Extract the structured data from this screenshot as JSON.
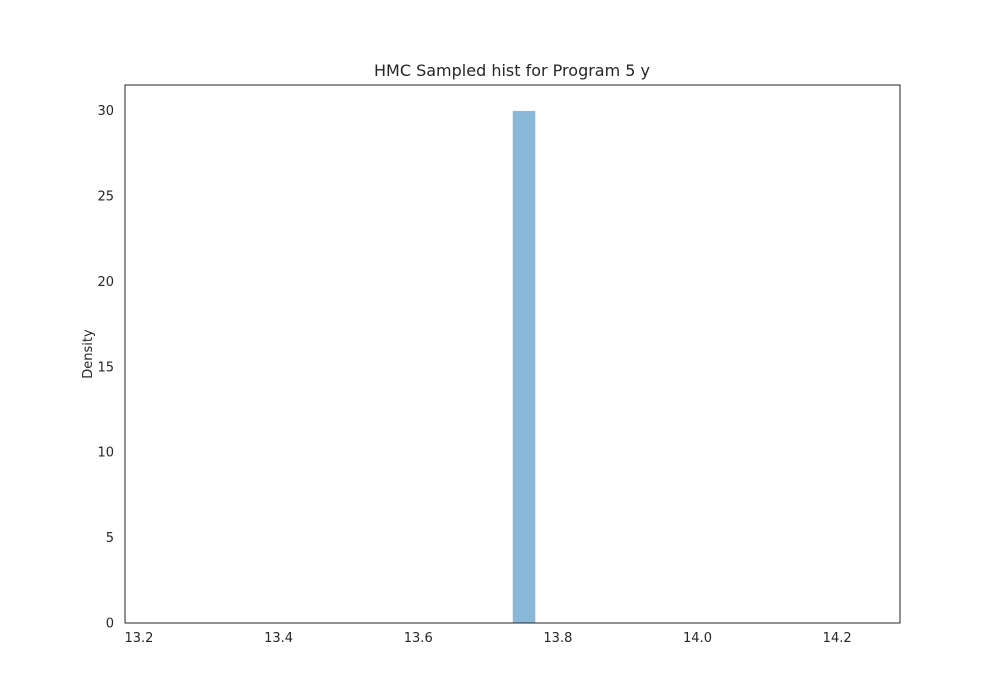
{
  "chart_data": {
    "type": "bar",
    "title": "HMC Sampled hist for Program 5 y",
    "xlabel": "",
    "ylabel": "Density",
    "xlim": [
      13.18,
      14.29
    ],
    "ylim": [
      0,
      31.5
    ],
    "x_ticks": [
      {
        "value": 13.2,
        "label": "13.2"
      },
      {
        "value": 13.4,
        "label": "13.4"
      },
      {
        "value": 13.6,
        "label": "13.6"
      },
      {
        "value": 13.8,
        "label": "13.8"
      },
      {
        "value": 14.0,
        "label": "14.0"
      },
      {
        "value": 14.2,
        "label": "14.2"
      }
    ],
    "y_ticks": [
      {
        "value": 0,
        "label": "0"
      },
      {
        "value": 5,
        "label": "5"
      },
      {
        "value": 10,
        "label": "10"
      },
      {
        "value": 15,
        "label": "15"
      },
      {
        "value": 20,
        "label": "20"
      },
      {
        "value": 25,
        "label": "25"
      },
      {
        "value": 30,
        "label": "30"
      }
    ],
    "bars": [
      {
        "x0": 13.735,
        "x1": 13.768,
        "value": 30
      }
    ],
    "grid": false,
    "colors": {
      "bar": "#8ab8d8",
      "axis": "#262626",
      "text": "#262626"
    }
  }
}
